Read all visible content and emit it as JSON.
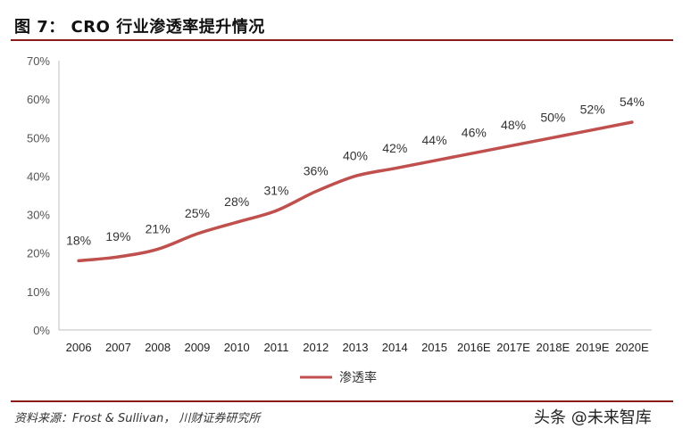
{
  "title": "图 7： CRO 行业渗透率提升情况",
  "source": "资料来源：Frost & Sullivan， 川财证券研究所",
  "watermark": "头条 @未来智库",
  "chart_data": {
    "type": "line",
    "title": "",
    "xlabel": "",
    "ylabel": "",
    "categories": [
      "2006",
      "2007",
      "2008",
      "2009",
      "2010",
      "2011",
      "2012",
      "2013",
      "2014",
      "2015",
      "2016E",
      "2017E",
      "2018E",
      "2019E",
      "2020E"
    ],
    "series": [
      {
        "name": "渗透率",
        "values": [
          18,
          19,
          21,
          25,
          28,
          31,
          36,
          40,
          42,
          44,
          46,
          48,
          50,
          52,
          54
        ],
        "labels": [
          "18%",
          "19%",
          "21%",
          "25%",
          "28%",
          "31%",
          "36%",
          "40%",
          "42%",
          "44%",
          "46%",
          "48%",
          "50%",
          "52%",
          "54%"
        ],
        "color": "#c0504d"
      }
    ],
    "ylim": [
      0,
      70
    ],
    "yticks": [
      "0%",
      "10%",
      "20%",
      "30%",
      "40%",
      "50%",
      "60%",
      "70%"
    ],
    "grid": false,
    "legend_position": "bottom"
  }
}
